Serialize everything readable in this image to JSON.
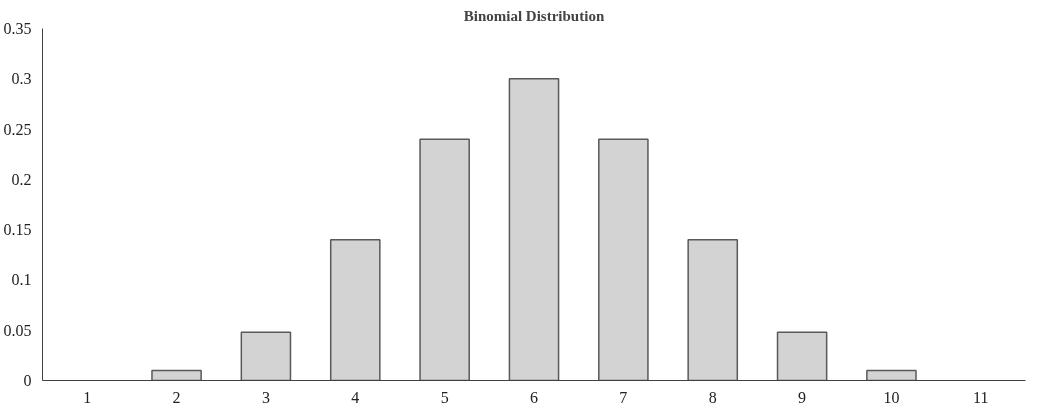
{
  "chart_data": {
    "type": "bar",
    "title": "Binomial Distribution",
    "categories": [
      "1",
      "2",
      "3",
      "4",
      "5",
      "6",
      "7",
      "8",
      "9",
      "10",
      "11"
    ],
    "values": [
      null,
      0.01,
      0.048,
      0.14,
      0.24,
      0.3,
      0.24,
      0.14,
      0.048,
      0.01,
      null
    ],
    "color": "#d3d3d3",
    "ylim": [
      0,
      0.35
    ],
    "yticks": [
      0,
      0.05,
      0.1,
      0.15,
      0.2,
      0.25,
      0.3,
      0.35
    ],
    "grid": false
  }
}
